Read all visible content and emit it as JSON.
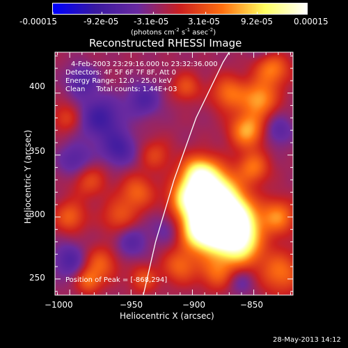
{
  "colorbar": {
    "tick_labels": [
      "-0.00015",
      "-9.2e-05",
      "-3.1e-05",
      "3.1e-05",
      "9.2e-05",
      "0.00015"
    ],
    "tick_values": [
      -0.00015,
      -9.2e-05,
      -3.1e-05,
      3.1e-05,
      9.2e-05,
      0.00015
    ],
    "range": [
      -0.00015,
      0.00015
    ],
    "units_prefix": "(photons cm",
    "units_sup1": "-2",
    "units_mid": " s",
    "units_sup2": "-1",
    "units_mid2": " asec",
    "units_sup3": "-2",
    "units_suffix": ")",
    "colors": [
      "#0000ff",
      "#3a1aa0",
      "#6a2aa0",
      "#cc2020",
      "#ff7010",
      "#ffff60",
      "#ffffff"
    ]
  },
  "chart_data": {
    "type": "heatmap",
    "title": "Reconstructed RHESSI Image",
    "xlabel": "Heliocentric X (arcsec)",
    "ylabel": "Heliocentric Y (arcsec)",
    "xlim": [
      -1012,
      -818
    ],
    "ylim": [
      237,
      433
    ],
    "x_ticks": [
      -1000,
      -950,
      -900,
      -850
    ],
    "x_tick_labels": [
      "−1000",
      "−950",
      "−900",
      "−850"
    ],
    "y_ticks": [
      250,
      300,
      350,
      400
    ],
    "y_tick_labels": [
      "250",
      "300",
      "350",
      "400"
    ],
    "limb_curve": [
      [
        -940,
        237
      ],
      [
        -930,
        280
      ],
      [
        -915,
        330
      ],
      [
        -897,
        380
      ],
      [
        -875,
        425
      ],
      [
        -870,
        433
      ]
    ],
    "peak": [
      -868,
      294
    ],
    "annotations": {
      "time": "4-Feb-2003 23:29:16.000 to 23:32:36.000",
      "detectors": "Detectors: 4F 5F 6F 7F 8F, Att 0",
      "energy": "Energy Range: 12.0 - 25.0 keV",
      "clean": "Clean     Total counts: 1.44E+03",
      "peak_text": "Position of Peak = [-868,294]"
    }
  },
  "footer": {
    "timestamp": "28-May-2013 14:12"
  }
}
